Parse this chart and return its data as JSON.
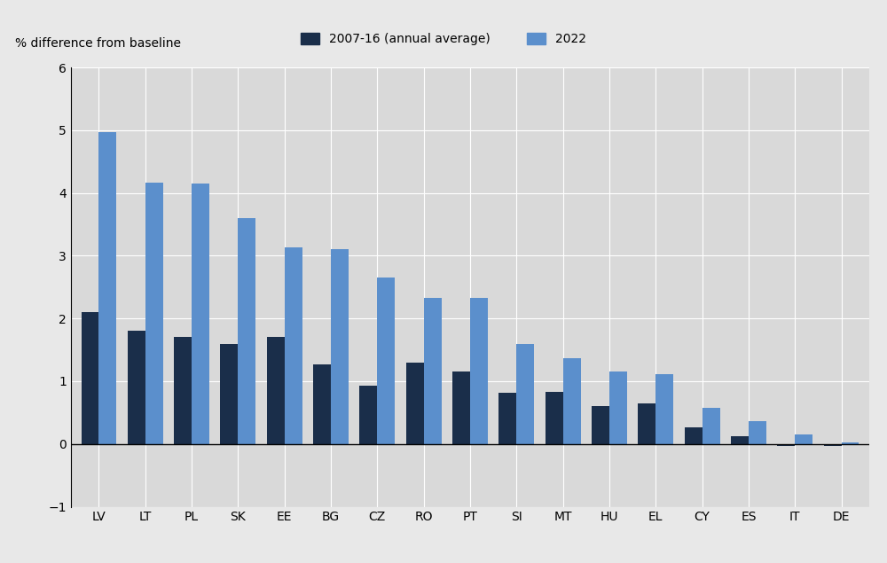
{
  "categories": [
    "LV",
    "LT",
    "PL",
    "SK",
    "EE",
    "BG",
    "CZ",
    "RO",
    "PT",
    "SI",
    "MT",
    "HU",
    "EL",
    "CY",
    "ES",
    "IT",
    "DE"
  ],
  "series_2007_16": [
    2.1,
    1.8,
    1.7,
    1.6,
    1.7,
    1.27,
    0.93,
    1.3,
    1.15,
    0.82,
    0.83,
    0.6,
    0.65,
    0.27,
    0.12,
    -0.03,
    -0.03
  ],
  "series_2022": [
    4.97,
    4.17,
    4.15,
    3.6,
    3.13,
    3.11,
    2.66,
    2.33,
    2.33,
    1.59,
    1.37,
    1.16,
    1.11,
    0.57,
    0.37,
    0.15,
    0.03
  ],
  "color_2007_16": "#1a2e4a",
  "color_2022": "#5b8fcc",
  "ylabel": "% difference from baseline",
  "ylim": [
    -1.0,
    6.0
  ],
  "yticks": [
    -1.0,
    0.0,
    1.0,
    2.0,
    3.0,
    4.0,
    5.0,
    6.0
  ],
  "ytick_labels": [
    "-1.0",
    "0.0",
    "1.0",
    "2.0",
    "3.0",
    "4.0",
    "5.0",
    "6.0"
  ],
  "legend_label_1": "2007-16 (annual average)",
  "legend_label_2": "2022",
  "plot_bg_color": "#d9d9d9",
  "fig_bg_color": "#e8e8e8",
  "legend_bg_color": "#d9d9d9",
  "bar_width": 0.38,
  "grid_color": "white",
  "zero_line_color": "black"
}
